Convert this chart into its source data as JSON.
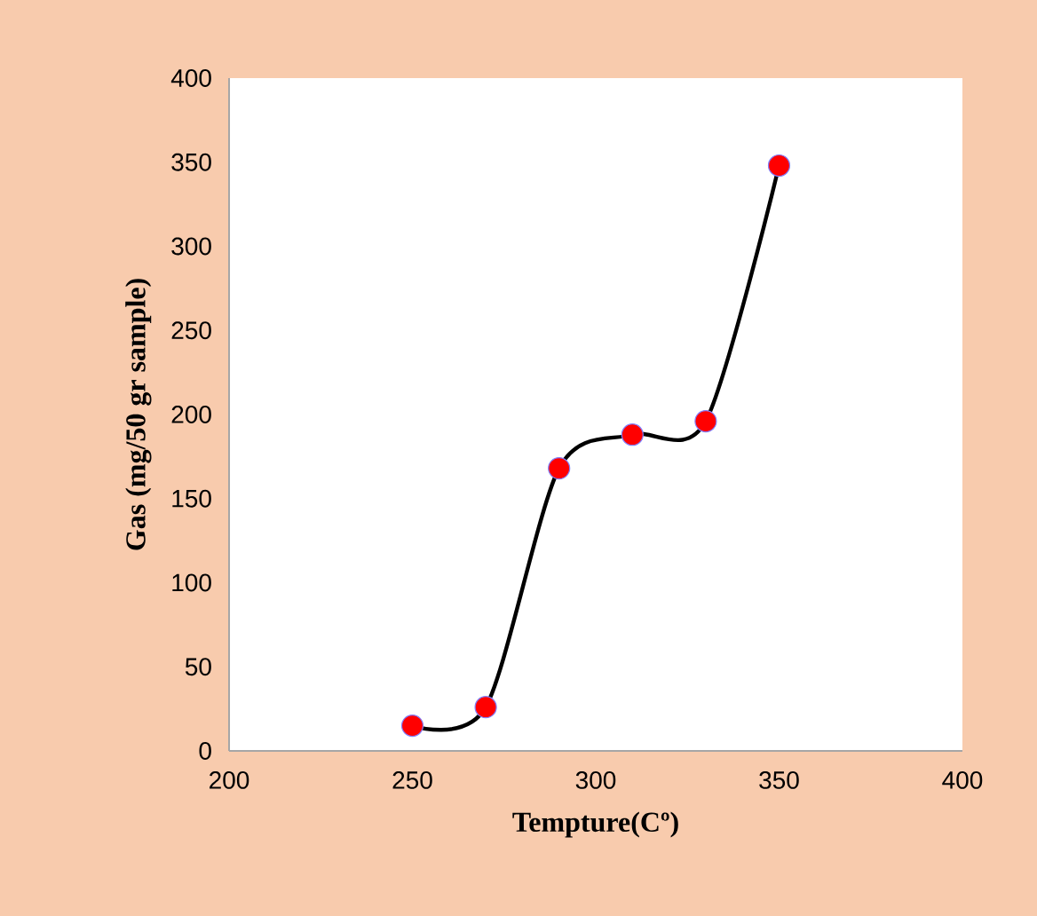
{
  "chart_data": {
    "type": "line",
    "xlabel": "Tempture(Cº)",
    "ylabel": "Gas (mg/50 gr sample)",
    "x": [
      250,
      270,
      290,
      310,
      330,
      350
    ],
    "series": [
      {
        "color": "#000000",
        "colors": [
          "#ff0000",
          "#ff0000",
          "#ff0000",
          "#ff0000",
          "#ff0000",
          "#ff0000"
        ],
        "values": [
          15,
          26,
          168,
          188,
          196,
          348
        ]
      }
    ],
    "xlim": [
      200,
      400
    ],
    "xticks": [
      200,
      250,
      300,
      350,
      400
    ],
    "ylim": [
      0,
      400
    ],
    "yticks": [
      0,
      50,
      100,
      150,
      200,
      250,
      300,
      350,
      400
    ],
    "marker": "circle",
    "line_style": "solid"
  }
}
